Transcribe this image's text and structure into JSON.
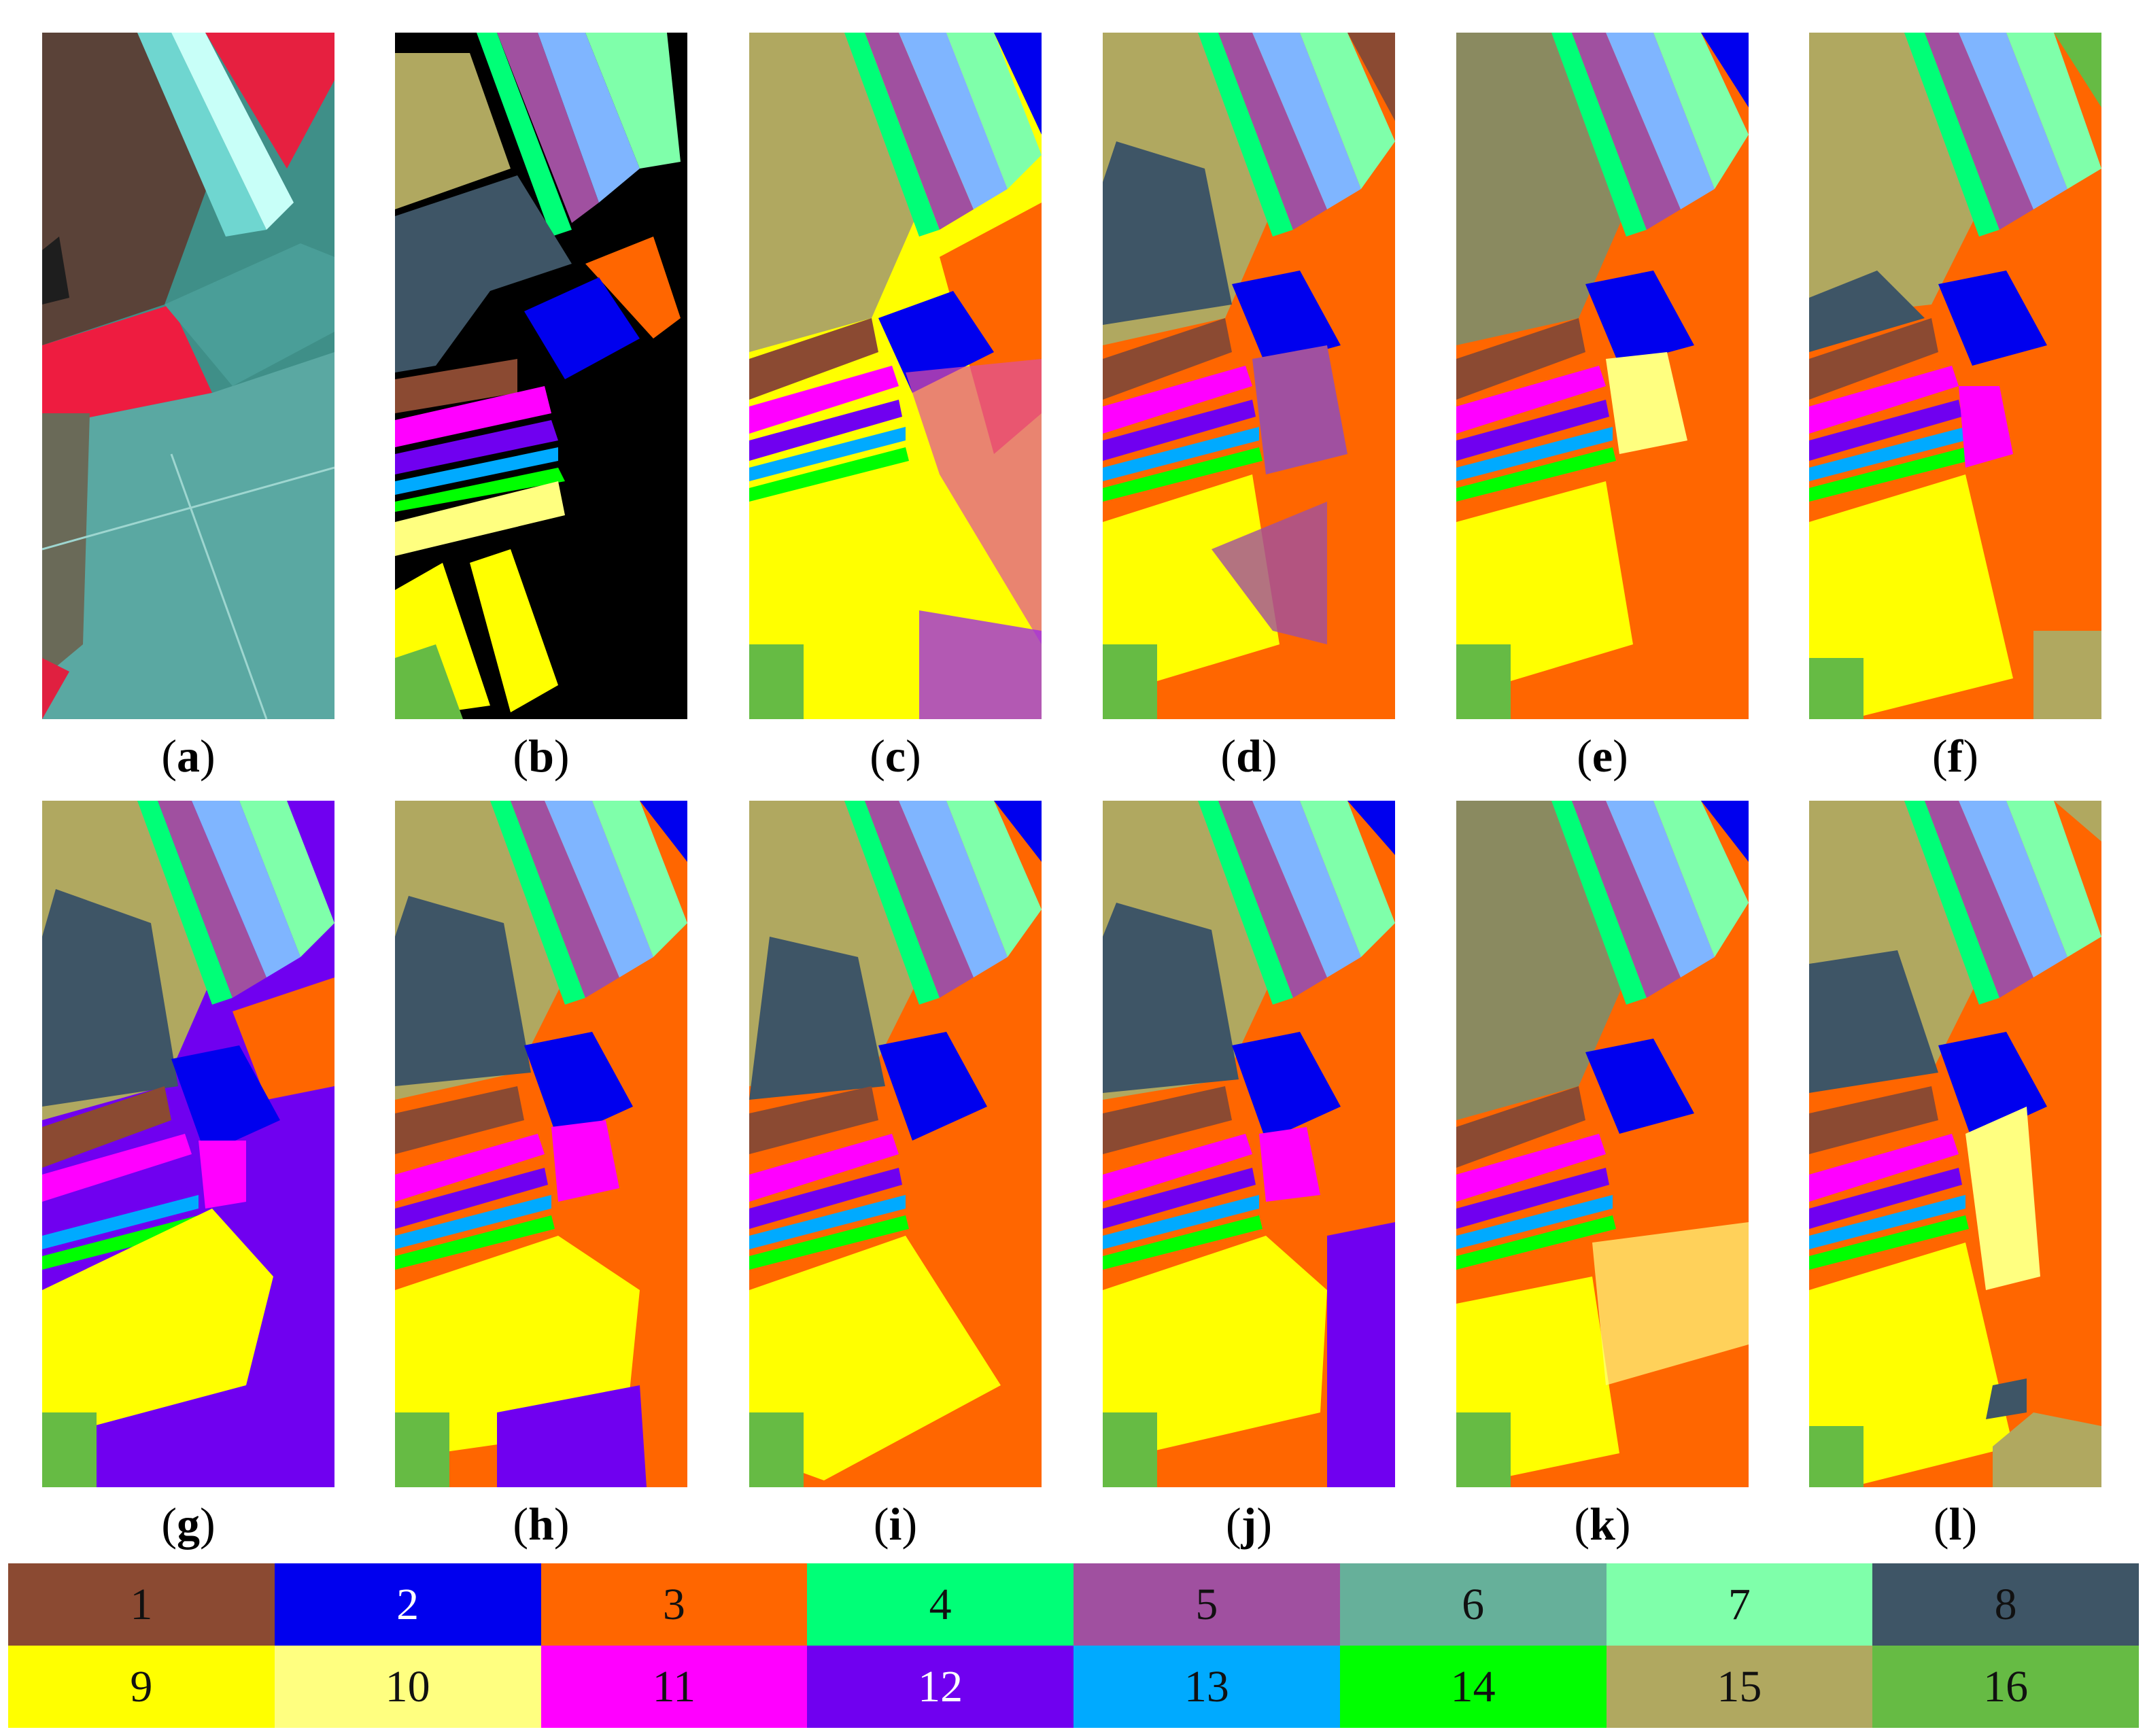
{
  "panels": [
    {
      "id": "a",
      "kind": "false-color"
    },
    {
      "id": "b",
      "kind": "ground-truth"
    },
    {
      "id": "c",
      "kind": "classification"
    },
    {
      "id": "d",
      "kind": "classification"
    },
    {
      "id": "e",
      "kind": "classification"
    },
    {
      "id": "f",
      "kind": "classification"
    },
    {
      "id": "g",
      "kind": "classification"
    },
    {
      "id": "h",
      "kind": "classification"
    },
    {
      "id": "i",
      "kind": "classification"
    },
    {
      "id": "j",
      "kind": "classification"
    },
    {
      "id": "k",
      "kind": "classification"
    },
    {
      "id": "l",
      "kind": "classification"
    }
  ],
  "captions": [
    "a",
    "b",
    "c",
    "d",
    "e",
    "f",
    "g",
    "h",
    "i",
    "j",
    "k",
    "l"
  ],
  "legend": [
    {
      "label": "1",
      "color": "#8B4A32"
    },
    {
      "label": "2",
      "color": "#0000EE"
    },
    {
      "label": "3",
      "color": "#FF6600"
    },
    {
      "label": "4",
      "color": "#00FF77"
    },
    {
      "label": "5",
      "color": "#A050A0"
    },
    {
      "label": "6",
      "color": "#66B09A"
    },
    {
      "label": "7",
      "color": "#7FFFAA"
    },
    {
      "label": "8",
      "color": "#3E5566"
    },
    {
      "label": "9",
      "color": "#FFFF00"
    },
    {
      "label": "10",
      "color": "#FFFF80"
    },
    {
      "label": "11",
      "color": "#FF00FF"
    },
    {
      "label": "12",
      "color": "#7000F0"
    },
    {
      "label": "13",
      "color": "#00AAFF"
    },
    {
      "label": "14",
      "color": "#00FF00"
    },
    {
      "label": "15",
      "color": "#B0A860"
    },
    {
      "label": "16",
      "color": "#66BB44"
    }
  ]
}
